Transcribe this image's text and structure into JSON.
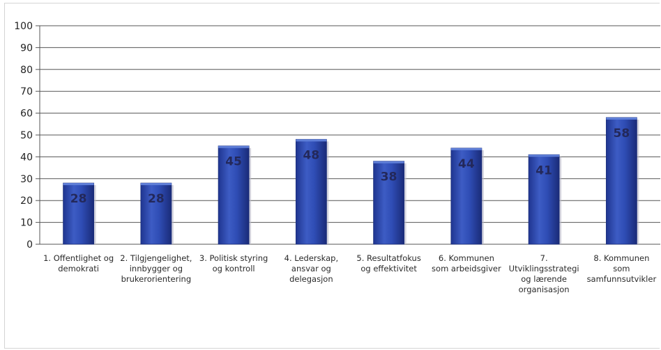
{
  "chart_data": {
    "type": "bar",
    "categories": [
      [
        "1. Offentlighet og",
        "demokrati"
      ],
      [
        "2. Tilgjengelighet,",
        "innbygger og",
        "brukerorientering"
      ],
      [
        "3. Politisk styring",
        "og kontroll"
      ],
      [
        "4. Lederskap,",
        "ansvar og",
        "delegasjon"
      ],
      [
        "5. Resultatfokus",
        "og effektivitet"
      ],
      [
        "6. Kommunen",
        "som arbeidsgiver"
      ],
      [
        "7.",
        "Utviklingsstrategi",
        "og lærende",
        "organisasjon"
      ],
      [
        "8. Kommunen",
        "som",
        "samfunnsutvikler"
      ]
    ],
    "values": [
      28,
      28,
      45,
      48,
      38,
      44,
      41,
      58
    ],
    "data_labels": [
      "28",
      "28",
      "45",
      "48",
      "38",
      "44",
      "41",
      "58"
    ],
    "title": "",
    "xlabel": "",
    "ylabel": "",
    "ylim": [
      0,
      100
    ],
    "yticks": [
      "0",
      "10",
      "20",
      "30",
      "40",
      "50",
      "60",
      "70",
      "80",
      "90",
      "100"
    ],
    "grid": true,
    "legend": "none",
    "colors": {
      "bar": "#2e49b0",
      "bar_highlight": "#5f7fd8",
      "bar_shadow": "#1c2f7a",
      "gridline": "#555555",
      "label_text": "#23285a"
    }
  }
}
